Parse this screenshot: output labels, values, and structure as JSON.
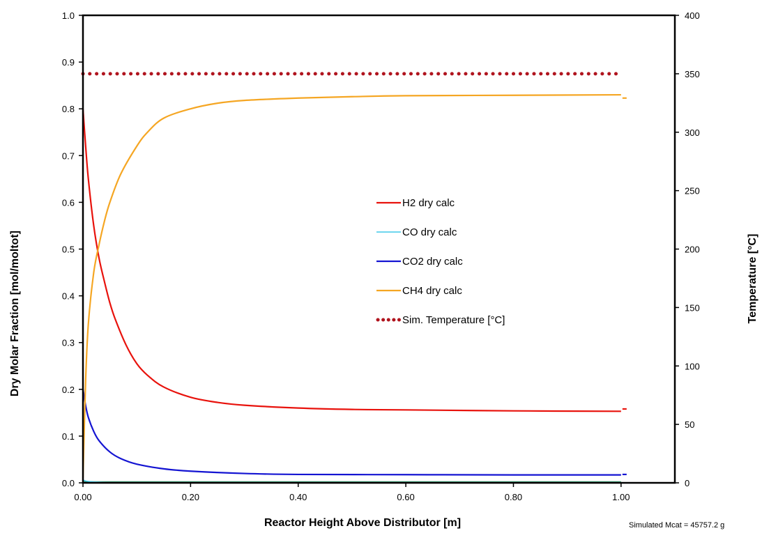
{
  "chart_data": {
    "type": "line",
    "xlabel": "Reactor Height Above Distributor [m]",
    "ylabel": "Dry Molar Fraction [mol/moltot]",
    "y2label": "Temperature [°C]",
    "note": "Simulated Mcat = 45757.2 g",
    "xlim": [
      0,
      1.1
    ],
    "ylim": [
      0,
      1.0
    ],
    "y2lim": [
      0,
      400
    ],
    "x_ticks": [
      "0.00",
      "0.20",
      "0.40",
      "0.60",
      "0.80",
      "1.00"
    ],
    "x_tick_values": [
      0,
      0.2,
      0.4,
      0.6,
      0.8,
      1.0
    ],
    "y_ticks": [
      "0.0",
      "0.1",
      "0.2",
      "0.3",
      "0.4",
      "0.5",
      "0.6",
      "0.7",
      "0.8",
      "0.9",
      "1.0"
    ],
    "y_tick_values": [
      0,
      0.1,
      0.2,
      0.3,
      0.4,
      0.5,
      0.6,
      0.7,
      0.8,
      0.9,
      1.0
    ],
    "y2_ticks": [
      "0",
      "50",
      "100",
      "150",
      "200",
      "250",
      "300",
      "350",
      "400"
    ],
    "y2_tick_values": [
      0,
      50,
      100,
      150,
      200,
      250,
      300,
      350,
      400
    ],
    "grid": false,
    "legend_position": "center-right",
    "series": [
      {
        "name": "H2 dry calc",
        "axis": "left",
        "color": "#e8120c",
        "style": "solid",
        "x": [
          0,
          0.005,
          0.01,
          0.02,
          0.03,
          0.04,
          0.05,
          0.06,
          0.08,
          0.1,
          0.12,
          0.15,
          0.2,
          0.25,
          0.3,
          0.4,
          0.5,
          0.6,
          0.8,
          1.0
        ],
        "y": [
          0.8,
          0.72,
          0.65,
          0.55,
          0.48,
          0.43,
          0.385,
          0.35,
          0.295,
          0.255,
          0.23,
          0.205,
          0.183,
          0.172,
          0.166,
          0.16,
          0.157,
          0.156,
          0.154,
          0.153
        ],
        "end_marker": 0.158
      },
      {
        "name": "CO dry calc",
        "axis": "left",
        "color": "#3ec9e8",
        "style": "solid",
        "x": [
          0,
          0.005,
          0.01,
          0.02,
          0.05,
          0.1,
          0.5,
          1.0
        ],
        "y": [
          0.006,
          0.004,
          0.003,
          0.002,
          0.001,
          0.001,
          0.001,
          0.001
        ]
      },
      {
        "name": "CO2 dry calc",
        "axis": "left",
        "color": "#1414d2",
        "style": "solid",
        "x": [
          0,
          0.005,
          0.01,
          0.02,
          0.03,
          0.05,
          0.07,
          0.1,
          0.15,
          0.2,
          0.3,
          0.4,
          0.6,
          0.8,
          1.0
        ],
        "y": [
          0.2,
          0.165,
          0.14,
          0.11,
          0.09,
          0.066,
          0.052,
          0.04,
          0.03,
          0.025,
          0.02,
          0.018,
          0.0175,
          0.017,
          0.017
        ],
        "end_marker": 0.018
      },
      {
        "name": "CH4 dry calc",
        "axis": "left",
        "color": "#f5a623",
        "style": "solid",
        "x": [
          0,
          0.005,
          0.01,
          0.02,
          0.03,
          0.04,
          0.05,
          0.07,
          0.1,
          0.12,
          0.15,
          0.2,
          0.25,
          0.3,
          0.4,
          0.5,
          0.6,
          0.8,
          1.0
        ],
        "y": [
          0.01,
          0.22,
          0.34,
          0.45,
          0.51,
          0.56,
          0.6,
          0.66,
          0.72,
          0.75,
          0.78,
          0.8,
          0.812,
          0.818,
          0.823,
          0.826,
          0.828,
          0.829,
          0.83
        ],
        "end_marker": 0.823
      },
      {
        "name": "Sim. Temperature [°C]",
        "axis": "right",
        "color": "#b0141e",
        "style": "dotted",
        "x": [
          0,
          1.0
        ],
        "y": [
          350,
          350
        ]
      }
    ],
    "baseline": {
      "color": "#2a8a50",
      "y": 0
    }
  }
}
